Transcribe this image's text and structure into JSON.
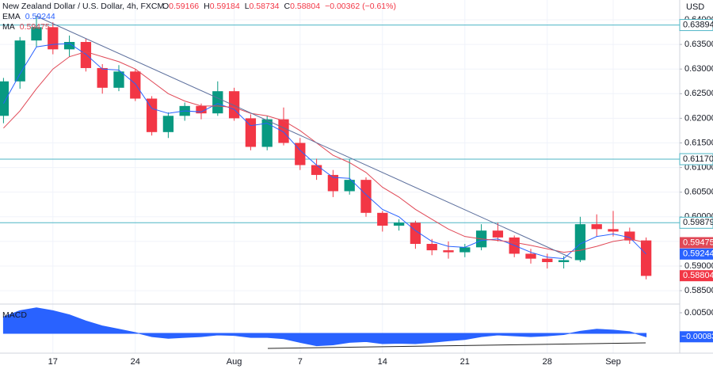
{
  "chart_data": [
    {
      "type": "candlestick",
      "title": "New Zealand Dollar / U.S. Dollar, 4h, FXCM",
      "header_values": [
        {
          "key": "O",
          "text": "0.59166"
        },
        {
          "key": "H",
          "text": "0.59184"
        },
        {
          "key": "L",
          "text": "0.58734"
        },
        {
          "key": "C",
          "text": "0.58804"
        }
      ],
      "header_change": "−0.00362 (−0.61%)",
      "currency": "USD",
      "categories": [
        null,
        null,
        null,
        "17",
        null,
        null,
        null,
        null,
        "24",
        null,
        null,
        null,
        null,
        null,
        "Aug",
        null,
        null,
        null,
        "7",
        null,
        null,
        null,
        null,
        "14",
        null,
        null,
        null,
        null,
        "21",
        null,
        null,
        null,
        null,
        "28",
        null,
        null,
        null,
        "Sep",
        null,
        null
      ],
      "open": [
        0.6205,
        0.6275,
        0.6358,
        0.6385,
        0.634,
        0.6355,
        0.6302,
        0.6262,
        0.6295,
        0.624,
        0.6172,
        0.6205,
        0.6225,
        0.621,
        0.6255,
        0.62,
        0.6142,
        0.6198,
        0.615,
        0.6105,
        0.6085,
        0.6052,
        0.6075,
        0.6008,
        0.5982,
        0.5988,
        0.5945,
        0.5932,
        0.5928,
        0.5938,
        0.5972,
        0.5958,
        0.5925,
        0.5915,
        0.5908,
        0.5912,
        0.5985,
        0.5975,
        0.597,
        0.5952
      ],
      "high": [
        0.6282,
        0.6365,
        0.6405,
        0.6395,
        0.6368,
        0.6362,
        0.631,
        0.6308,
        0.63,
        0.6245,
        0.6212,
        0.6232,
        0.623,
        0.6275,
        0.6262,
        0.6208,
        0.6205,
        0.6222,
        0.616,
        0.6118,
        0.6095,
        0.6117,
        0.608,
        0.6012,
        0.5995,
        0.5992,
        0.5955,
        0.595,
        0.5945,
        0.5985,
        0.5988,
        0.5962,
        0.5935,
        0.5925,
        0.592,
        0.6,
        0.6005,
        0.6012,
        0.5978,
        0.5958
      ],
      "low": [
        0.619,
        0.626,
        0.6345,
        0.633,
        0.6325,
        0.6295,
        0.625,
        0.6255,
        0.6235,
        0.6165,
        0.616,
        0.6195,
        0.6198,
        0.6205,
        0.6195,
        0.6135,
        0.6135,
        0.6145,
        0.6095,
        0.6075,
        0.604,
        0.6045,
        0.6,
        0.597,
        0.5972,
        0.5935,
        0.5922,
        0.5915,
        0.5918,
        0.5932,
        0.595,
        0.5918,
        0.5905,
        0.5895,
        0.5895,
        0.5908,
        0.596,
        0.596,
        0.5945,
        0.5873
      ],
      "close": [
        0.6275,
        0.6358,
        0.6385,
        0.634,
        0.6355,
        0.6302,
        0.6262,
        0.6295,
        0.624,
        0.6172,
        0.6205,
        0.6225,
        0.621,
        0.6255,
        0.62,
        0.6142,
        0.6198,
        0.615,
        0.6105,
        0.6085,
        0.6052,
        0.6075,
        0.6008,
        0.5982,
        0.5988,
        0.5945,
        0.5932,
        0.5928,
        0.5938,
        0.5972,
        0.5958,
        0.5925,
        0.5915,
        0.5908,
        0.5912,
        0.5985,
        0.5975,
        0.597,
        0.5952,
        0.588
      ],
      "up_color": "#089981",
      "down_color": "#f23645",
      "series": [
        {
          "name": "EMA",
          "value_label": "0.59244",
          "color": "#2962ff",
          "values": [
            0.623,
            0.629,
            0.6345,
            0.635,
            0.6352,
            0.633,
            0.63,
            0.6298,
            0.627,
            0.622,
            0.621,
            0.6215,
            0.6213,
            0.623,
            0.6218,
            0.6185,
            0.619,
            0.6172,
            0.6135,
            0.6105,
            0.608,
            0.6078,
            0.6045,
            0.6015,
            0.6,
            0.5972,
            0.595,
            0.594,
            0.5938,
            0.5952,
            0.5955,
            0.5942,
            0.5928,
            0.5918,
            0.5915,
            0.5945,
            0.596,
            0.5965,
            0.5958,
            0.59244
          ]
        },
        {
          "name": "MA",
          "value_label": "0.59475",
          "color": "#e04856",
          "values": [
            0.618,
            0.6215,
            0.626,
            0.63,
            0.6325,
            0.6335,
            0.6325,
            0.6315,
            0.63,
            0.6275,
            0.625,
            0.6235,
            0.6225,
            0.6225,
            0.6222,
            0.621,
            0.6205,
            0.6195,
            0.6175,
            0.615,
            0.6125,
            0.611,
            0.609,
            0.606,
            0.604,
            0.6015,
            0.5995,
            0.5975,
            0.596,
            0.5955,
            0.5952,
            0.5948,
            0.5942,
            0.5935,
            0.5928,
            0.5932,
            0.594,
            0.595,
            0.5955,
            0.59475
          ]
        }
      ],
      "ylim": [
        0.58244,
        0.64402
      ],
      "yticks": [
        {
          "value": 0.585,
          "label": "0.58500"
        },
        {
          "value": 0.59,
          "label": "0.59000"
        },
        {
          "value": 0.595,
          "label": "0.59500"
        },
        {
          "value": 0.6,
          "label": "0.60000"
        },
        {
          "value": 0.605,
          "label": "0.60500"
        },
        {
          "value": 0.61,
          "label": "0.61000"
        },
        {
          "value": 0.615,
          "label": "0.61500"
        },
        {
          "value": 0.62,
          "label": "0.62000"
        },
        {
          "value": 0.625,
          "label": "0.62500"
        },
        {
          "value": 0.63,
          "label": "0.63000"
        },
        {
          "value": 0.635,
          "label": "0.63500"
        },
        {
          "value": 0.64,
          "label": "0.64000"
        }
      ],
      "grid": true,
      "levels": [
        {
          "value": 0.63894,
          "label": "0.63894"
        },
        {
          "value": 0.6117,
          "label": "0.61170"
        },
        {
          "value": 0.59879,
          "label": "0.59879"
        }
      ],
      "level_color": "#4db6c6",
      "price_tags": [
        {
          "value": 0.59475,
          "label": "0.59475",
          "color": "#e04856"
        },
        {
          "value": 0.59244,
          "label": "0.59244",
          "color": "#2962ff"
        },
        {
          "value": 0.58804,
          "label": "0.58804",
          "color": "#f23645"
        }
      ]
    },
    {
      "type": "area",
      "name": "MACD",
      "color": "#2962ff",
      "values": [
        0.004,
        0.0055,
        0.0062,
        0.0055,
        0.0045,
        0.003,
        0.0018,
        0.001,
        0.0002,
        -0.0008,
        -0.0012,
        -0.001,
        -0.0008,
        -0.0004,
        -0.0005,
        -0.001,
        -0.001,
        -0.0013,
        -0.0022,
        -0.003,
        -0.0028,
        -0.0022,
        -0.002,
        -0.0025,
        -0.0024,
        -0.0025,
        -0.0022,
        -0.0018,
        -0.0015,
        -0.0008,
        -0.0004,
        -0.0006,
        -0.0008,
        -0.0006,
        -0.0003,
        0.0005,
        0.001,
        0.0008,
        0.0004,
        -0.00083
      ],
      "ylim": [
        -0.00462,
        0.00692
      ],
      "yticks": [
        {
          "value": 0.005,
          "label": "0.00500"
        }
      ],
      "last_tag": {
        "value": -0.00083,
        "label": "−0.00083"
      }
    }
  ]
}
